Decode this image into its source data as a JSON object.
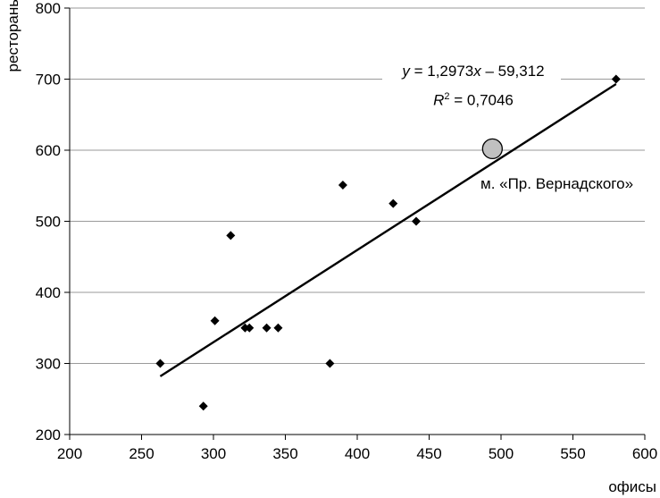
{
  "chart_data": {
    "type": "scatter",
    "xlabel": "офисы",
    "ylabel": "рестораны",
    "xlim": [
      200,
      600
    ],
    "ylim": [
      200,
      800
    ],
    "xticks": [
      "200",
      "250",
      "300",
      "350",
      "400",
      "450",
      "500",
      "550",
      "600"
    ],
    "yticks": [
      "200",
      "300",
      "400",
      "500",
      "600",
      "700",
      "800"
    ],
    "grid": "horizontal",
    "points": [
      {
        "x": 263,
        "y": 300
      },
      {
        "x": 293,
        "y": 240
      },
      {
        "x": 301,
        "y": 360
      },
      {
        "x": 312,
        "y": 480
      },
      {
        "x": 322,
        "y": 350
      },
      {
        "x": 325,
        "y": 350
      },
      {
        "x": 337,
        "y": 350
      },
      {
        "x": 345,
        "y": 350
      },
      {
        "x": 381,
        "y": 300
      },
      {
        "x": 390,
        "y": 551
      },
      {
        "x": 425,
        "y": 525
      },
      {
        "x": 441,
        "y": 500
      },
      {
        "x": 580,
        "y": 700
      }
    ],
    "highlight_point": {
      "x": 494,
      "y": 602,
      "label": "м. «Пр. Вернадского»"
    },
    "trendline": {
      "slope": 1.2973,
      "intercept": -59.312,
      "x_range": [
        263,
        580
      ],
      "equation_label": {
        "y": "y",
        "eq": " = 1,2973",
        "x": "x",
        "rest": " – 59,312"
      },
      "r2_label": {
        "r": "R",
        "sup": "2",
        "value": " = 0,7046"
      }
    }
  }
}
